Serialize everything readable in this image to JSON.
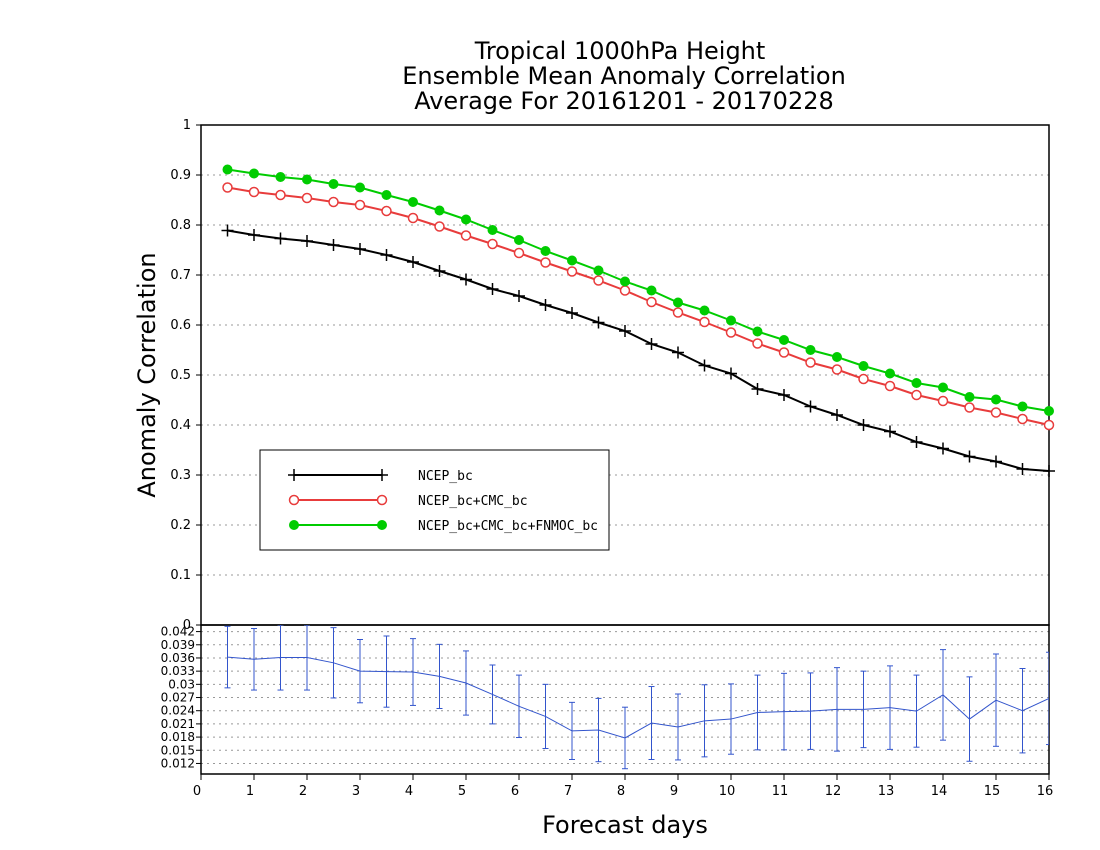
{
  "chart_data": [
    {
      "type": "line",
      "title": [
        "Tropical 1000hPa Height",
        "Ensemble Mean Anomaly Correlation",
        "Average For 20161201 - 20170228"
      ],
      "xlabel": "Forecast days",
      "ylabel": "Anomaly Correlation",
      "xlim": [
        0,
        16
      ],
      "ylim": [
        0,
        1
      ],
      "x_ticks": [
        "0",
        "1",
        "2",
        "3",
        "4",
        "5",
        "6",
        "7",
        "8",
        "9",
        "10",
        "11",
        "12",
        "13",
        "14",
        "15",
        "16"
      ],
      "y_ticks": [
        "0",
        "0.1",
        "0.2",
        "0.3",
        "0.4",
        "0.5",
        "0.6",
        "0.7",
        "0.8",
        "0.9",
        "1"
      ],
      "grid": "horizontal dotted",
      "legend_position": "lower-left",
      "x": [
        0.5,
        1,
        1.5,
        2,
        2.5,
        3,
        3.5,
        4,
        4.5,
        5,
        5.5,
        6,
        6.5,
        7,
        7.5,
        8,
        8.5,
        9,
        9.5,
        10,
        10.5,
        11,
        11.5,
        12,
        12.5,
        13,
        13.5,
        14,
        14.5,
        15,
        15.5,
        16
      ],
      "series": [
        {
          "name": "NCEP_bc",
          "color": "#000000",
          "marker": "plus",
          "values": [
            0.789,
            0.78,
            0.773,
            0.768,
            0.76,
            0.752,
            0.74,
            0.726,
            0.708,
            0.691,
            0.672,
            0.658,
            0.64,
            0.624,
            0.605,
            0.588,
            0.562,
            0.545,
            0.519,
            0.503,
            0.472,
            0.46,
            0.437,
            0.42,
            0.4,
            0.387,
            0.366,
            0.353,
            0.337,
            0.327,
            0.312,
            0.308
          ]
        },
        {
          "name": "NCEP_bc+CMC_bc",
          "color": "#e83c3c",
          "marker": "open-circle",
          "values": [
            0.875,
            0.866,
            0.86,
            0.854,
            0.846,
            0.84,
            0.828,
            0.814,
            0.797,
            0.779,
            0.762,
            0.744,
            0.725,
            0.707,
            0.689,
            0.669,
            0.646,
            0.625,
            0.606,
            0.585,
            0.563,
            0.545,
            0.525,
            0.511,
            0.492,
            0.478,
            0.46,
            0.448,
            0.435,
            0.425,
            0.412,
            0.4
          ]
        },
        {
          "name": "NCEP_bc+CMC_bc+FNMOC_bc",
          "color": "#00cc00",
          "marker": "filled-circle",
          "values": [
            0.911,
            0.903,
            0.896,
            0.891,
            0.882,
            0.875,
            0.86,
            0.846,
            0.829,
            0.811,
            0.79,
            0.77,
            0.748,
            0.729,
            0.709,
            0.687,
            0.669,
            0.645,
            0.629,
            0.609,
            0.587,
            0.57,
            0.55,
            0.536,
            0.518,
            0.503,
            0.484,
            0.475,
            0.456,
            0.451,
            0.437,
            0.428
          ]
        }
      ]
    },
    {
      "type": "line",
      "subtype": "errorbar",
      "xlabel": "Forecast days",
      "xlim": [
        0,
        16
      ],
      "ylim": [
        0.0096,
        0.0435
      ],
      "y_ticks": [
        "0.012",
        "0.015",
        "0.018",
        "0.021",
        "0.024",
        "0.027",
        "0.03",
        "0.033",
        "0.036",
        "0.039",
        "0.042"
      ],
      "grid": "horizontal dotted",
      "color": "#3355cc",
      "x": [
        0.5,
        1,
        1.5,
        2,
        2.5,
        3,
        3.5,
        4,
        4.5,
        5,
        5.5,
        6,
        6.5,
        7,
        7.5,
        8,
        8.5,
        9,
        9.5,
        10,
        10.5,
        11,
        11.5,
        12,
        12.5,
        13,
        13.5,
        14,
        14.5,
        15,
        15.5,
        16
      ],
      "values": [
        0.0362,
        0.0357,
        0.0361,
        0.0361,
        0.0349,
        0.033,
        0.0329,
        0.0328,
        0.0318,
        0.0303,
        0.0277,
        0.025,
        0.0227,
        0.0194,
        0.0196,
        0.0178,
        0.0212,
        0.0203,
        0.0217,
        0.0221,
        0.0236,
        0.0238,
        0.0239,
        0.0243,
        0.0243,
        0.0247,
        0.0239,
        0.0276,
        0.0221,
        0.0264,
        0.024,
        0.0268
      ],
      "error": [
        0.007,
        0.007,
        0.0074,
        0.0074,
        0.008,
        0.0072,
        0.0081,
        0.0076,
        0.0073,
        0.0073,
        0.0067,
        0.0071,
        0.0073,
        0.0065,
        0.0072,
        0.007,
        0.0083,
        0.0075,
        0.0082,
        0.008,
        0.0085,
        0.0087,
        0.0087,
        0.0095,
        0.0087,
        0.0095,
        0.0082,
        0.0103,
        0.0096,
        0.0105,
        0.0096,
        0.0105
      ]
    }
  ]
}
